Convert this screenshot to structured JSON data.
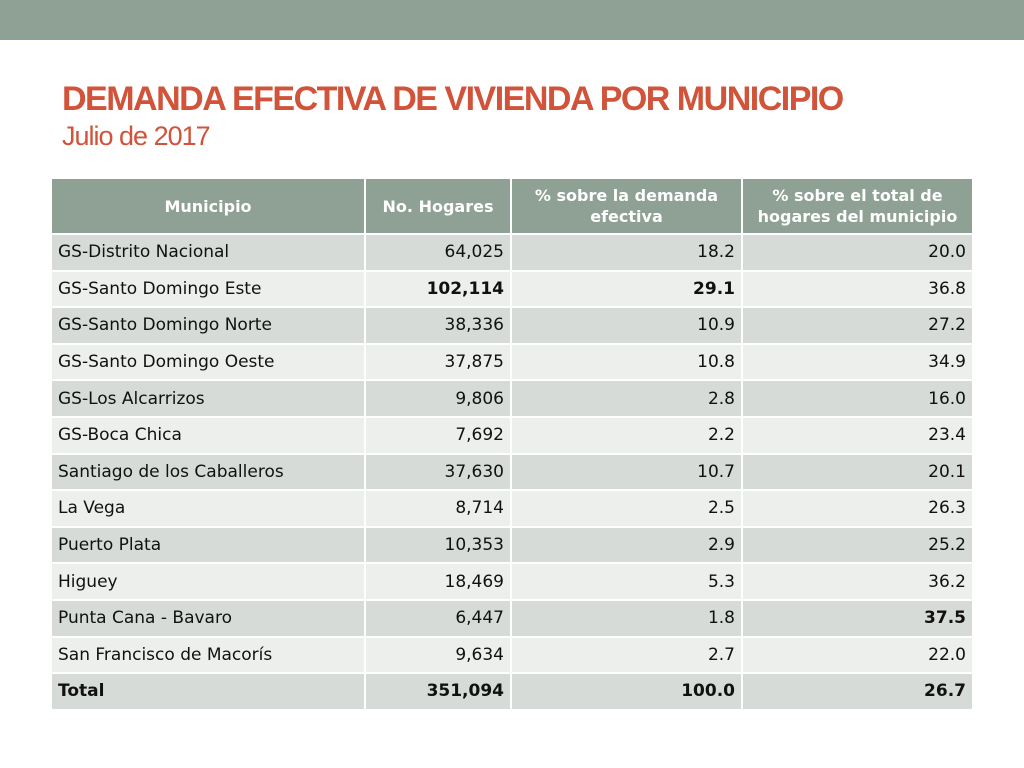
{
  "header": {
    "title": "DEMANDA EFECTIVA DE VIVIENDA POR MUNICIPIO",
    "subtitle": "Julio de 2017"
  },
  "colors": {
    "accent": "#d0533a",
    "header_bar": "#8fa094",
    "row_dark": "#d6dbd7",
    "row_light": "#ecefec"
  },
  "table": {
    "columns": [
      "Municipio",
      "No. Hogares",
      "% sobre la demanda efectiva",
      "% sobre el total de hogares del municipio"
    ],
    "rows": [
      {
        "municipio": "GS-Distrito Nacional",
        "hogares": "64,025",
        "pct_demanda": "18.2",
        "pct_total": "20.0"
      },
      {
        "municipio": "GS-Santo Domingo Este",
        "hogares": "102,114",
        "pct_demanda": "29.1",
        "pct_total": "36.8",
        "bold": [
          "hogares",
          "pct_demanda"
        ]
      },
      {
        "municipio": "GS-Santo Domingo Norte",
        "hogares": "38,336",
        "pct_demanda": "10.9",
        "pct_total": "27.2"
      },
      {
        "municipio": "GS-Santo Domingo Oeste",
        "hogares": "37,875",
        "pct_demanda": "10.8",
        "pct_total": "34.9"
      },
      {
        "municipio": "GS-Los Alcarrizos",
        "hogares": "9,806",
        "pct_demanda": "2.8",
        "pct_total": "16.0"
      },
      {
        "municipio": "GS-Boca Chica",
        "hogares": "7,692",
        "pct_demanda": "2.2",
        "pct_total": "23.4"
      },
      {
        "municipio": "Santiago de los Caballeros",
        "hogares": "37,630",
        "pct_demanda": "10.7",
        "pct_total": "20.1"
      },
      {
        "municipio": "La Vega",
        "hogares": "8,714",
        "pct_demanda": "2.5",
        "pct_total": "26.3"
      },
      {
        "municipio": "Puerto Plata",
        "hogares": "10,353",
        "pct_demanda": "2.9",
        "pct_total": "25.2"
      },
      {
        "municipio": "Higuey",
        "hogares": "18,469",
        "pct_demanda": "5.3",
        "pct_total": "36.2"
      },
      {
        "municipio": "Punta Cana - Bavaro",
        "hogares": "6,447",
        "pct_demanda": "1.8",
        "pct_total": "37.5",
        "bold": [
          "pct_total"
        ]
      },
      {
        "municipio": "San Francisco de Macorís",
        "hogares": "9,634",
        "pct_demanda": "2.7",
        "pct_total": "22.0"
      }
    ],
    "total": {
      "municipio": "Total",
      "hogares": "351,094",
      "pct_demanda": "100.0",
      "pct_total": "26.7"
    }
  }
}
